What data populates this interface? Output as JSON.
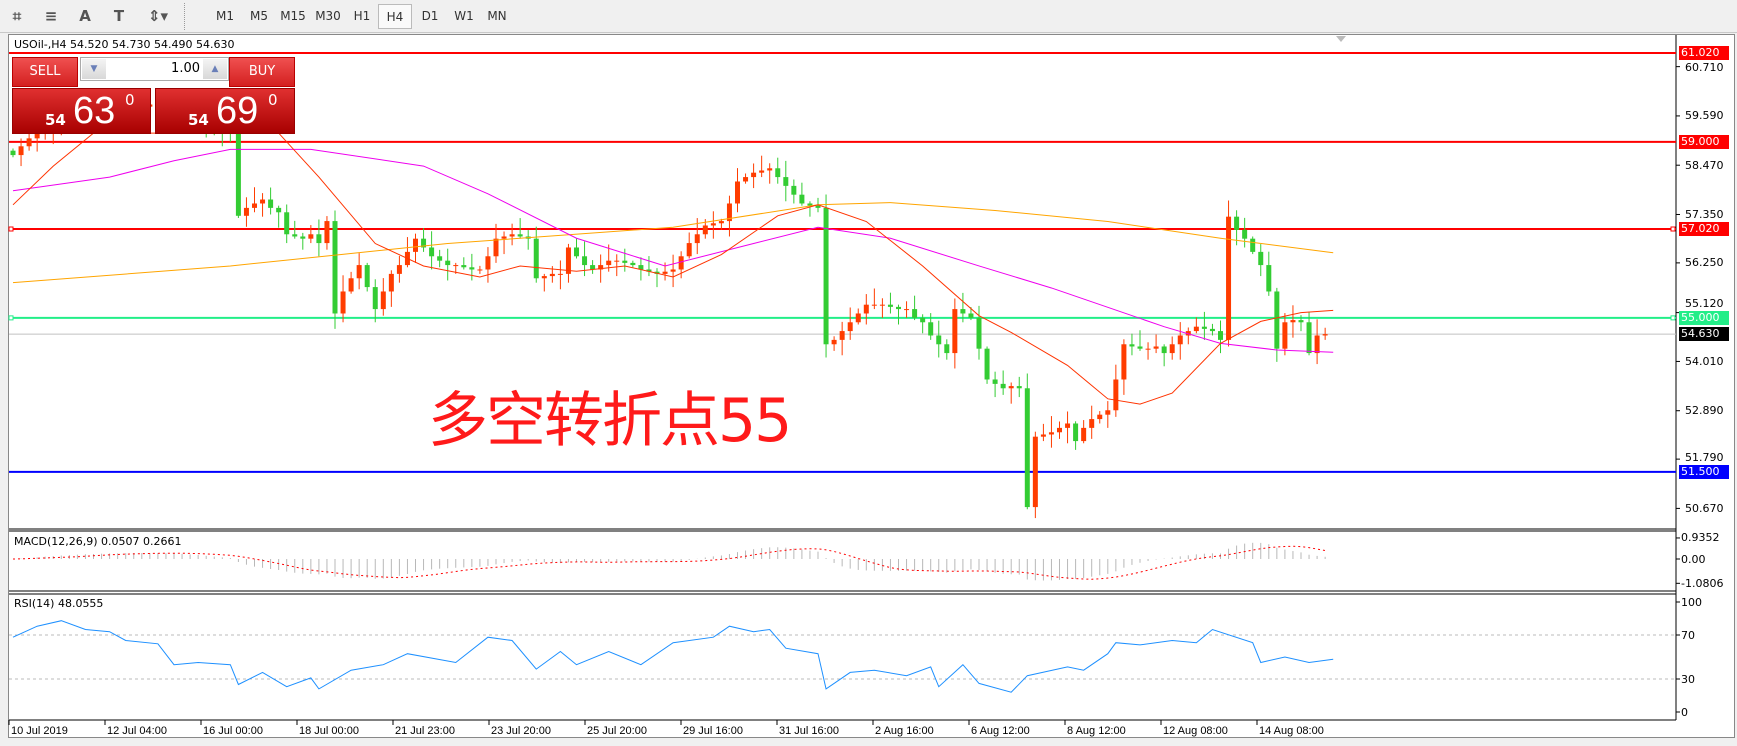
{
  "toolbar": {
    "icons": [
      "chart-grid-icon",
      "horizontal-lines-icon",
      "text-icon",
      "text-label-icon",
      "arrows-icon"
    ],
    "timeframes": [
      "M1",
      "M5",
      "M15",
      "M30",
      "H1",
      "H4",
      "D1",
      "W1",
      "MN"
    ],
    "selected": "H4"
  },
  "chart": {
    "title": "USOil-,H4  54.520 54.730 54.490 54.630"
  },
  "trade": {
    "sell_label": "SELL",
    "buy_label": "BUY",
    "lots": "1.00",
    "sell": {
      "big": "54",
      "main": "63",
      "sup": "0"
    },
    "buy": {
      "big": "54",
      "main": "69",
      "sup": "0"
    }
  },
  "annotation": "多空转折点55",
  "colors": {
    "bull": "#ff3c00",
    "bear": "#33cc33",
    "ma_fast": "#ff3300",
    "ma_mid": "#ee00ee",
    "ma_slow": "#ffa500",
    "rsi": "#1e90ff",
    "macd_signal": "#ff0000",
    "line_red": "#ff0000",
    "line_green": "#22ee88",
    "line_blue": "#0000ff"
  },
  "chart_data": {
    "type": "candlestick",
    "symbol": "USOil-",
    "timeframe": "H4",
    "ylim": [
      50.3,
      61.45
    ],
    "price_ticks": [
      "60.710",
      "59.590",
      "58.470",
      "57.350",
      "56.250",
      "55.120",
      "54.010",
      "52.890",
      "51.790",
      "50.670"
    ],
    "hlines": [
      {
        "price": 61.02,
        "label": "61.020",
        "color": "#ff0000"
      },
      {
        "price": 59.0,
        "label": "59.000",
        "color": "#ff0000"
      },
      {
        "price": 57.02,
        "label": "57.020",
        "color": "#ff0000"
      },
      {
        "price": 55.0,
        "label": "55.000",
        "color": "#22ee88"
      },
      {
        "price": 51.5,
        "label": "51.500",
        "color": "#0000ff"
      }
    ],
    "current_price": {
      "price": 54.63,
      "label": "54.630"
    },
    "date_labels": [
      "10 Jul 2019",
      "12 Jul 04:00",
      "16 Jul 00:00",
      "18 Jul 00:00",
      "21 Jul 23:00",
      "23 Jul 20:00",
      "25 Jul 20:00",
      "29 Jul 16:00",
      "31 Jul 16:00",
      "2 Aug 16:00",
      "6 Aug 12:00",
      "8 Aug 12:00",
      "12 Aug 08:00",
      "14 Aug 08:00"
    ],
    "closes": [
      58.7,
      58.9,
      59.08,
      59.2,
      59.3,
      59.35,
      59.4,
      59.45,
      59.5,
      59.55,
      59.6,
      59.65,
      59.7,
      59.7,
      59.75,
      59.8,
      59.8,
      59.85,
      59.8,
      59.8,
      59.8,
      59.7,
      59.6,
      59.5,
      59.4,
      59.3,
      59.25,
      59.2,
      57.32,
      57.5,
      57.6,
      57.69,
      57.5,
      57.4,
      56.9,
      56.85,
      56.8,
      56.9,
      56.7,
      57.2,
      55.1,
      55.6,
      55.9,
      56.2,
      55.7,
      55.2,
      55.6,
      56.0,
      56.2,
      56.5,
      56.8,
      56.6,
      56.4,
      56.3,
      56.2,
      56.2,
      56.15,
      56.1,
      56.1,
      56.4,
      56.8,
      56.85,
      56.9,
      56.85,
      56.8,
      55.9,
      55.95,
      56.0,
      56.0,
      56.6,
      56.4,
      56.2,
      56.1,
      56.2,
      56.3,
      56.3,
      56.25,
      56.2,
      56.1,
      56.05,
      56.0,
      56.05,
      56.1,
      56.4,
      56.7,
      56.9,
      57.1,
      57.15,
      57.2,
      57.6,
      58.1,
      58.2,
      58.3,
      58.35,
      58.4,
      58.2,
      58.0,
      57.8,
      57.6,
      57.55,
      57.5,
      54.4,
      54.5,
      54.7,
      54.9,
      55.1,
      55.3,
      55.3,
      55.3,
      55.25,
      55.2,
      55.2,
      55.0,
      54.9,
      54.6,
      54.4,
      54.2,
      55.2,
      55.1,
      55.0,
      54.3,
      53.6,
      53.5,
      53.4,
      53.45,
      53.4,
      50.7,
      52.3,
      52.35,
      52.4,
      52.5,
      52.6,
      52.2,
      52.5,
      52.7,
      52.8,
      52.9,
      53.6,
      54.4,
      54.35,
      54.3,
      54.3,
      54.35,
      54.2,
      54.4,
      54.6,
      54.7,
      54.8,
      54.75,
      54.7,
      54.5,
      57.3,
      57.0,
      56.8,
      56.5,
      56.2,
      55.6,
      54.3,
      54.9,
      54.95,
      54.9,
      54.2,
      54.6,
      54.63
    ],
    "ma_slow": [
      [
        0,
        55.8
      ],
      [
        27,
        56.18
      ],
      [
        54,
        56.69
      ],
      [
        82,
        57.06
      ],
      [
        100,
        57.57
      ],
      [
        109,
        57.62
      ],
      [
        122,
        57.44
      ],
      [
        136,
        57.19
      ],
      [
        150,
        56.81
      ],
      [
        164,
        56.48
      ]
    ],
    "ma_mid": [
      [
        0,
        57.89
      ],
      [
        12,
        58.2
      ],
      [
        20,
        58.57
      ],
      [
        27,
        58.83
      ],
      [
        37,
        58.83
      ],
      [
        51,
        58.45
      ],
      [
        59,
        57.82
      ],
      [
        70,
        56.81
      ],
      [
        81,
        56.18
      ],
      [
        92,
        56.69
      ],
      [
        100,
        57.06
      ],
      [
        109,
        56.81
      ],
      [
        120,
        56.18
      ],
      [
        129,
        55.68
      ],
      [
        143,
        54.8
      ],
      [
        150,
        54.42
      ],
      [
        157,
        54.27
      ],
      [
        164,
        54.22
      ]
    ],
    "ma_fast": [
      [
        0,
        57.57
      ],
      [
        5,
        58.45
      ],
      [
        10,
        59.2
      ],
      [
        33,
        59.2
      ],
      [
        38,
        58.2
      ],
      [
        45,
        56.69
      ],
      [
        51,
        56.18
      ],
      [
        58,
        55.93
      ],
      [
        63,
        56.18
      ],
      [
        70,
        56.06
      ],
      [
        76,
        56.18
      ],
      [
        82,
        55.93
      ],
      [
        88,
        56.44
      ],
      [
        95,
        57.32
      ],
      [
        100,
        57.57
      ],
      [
        106,
        57.19
      ],
      [
        113,
        56.18
      ],
      [
        120,
        55.05
      ],
      [
        124,
        54.67
      ],
      [
        131,
        53.92
      ],
      [
        136,
        53.16
      ],
      [
        140,
        53.04
      ],
      [
        144,
        53.29
      ],
      [
        150,
        54.42
      ],
      [
        155,
        54.92
      ],
      [
        160,
        55.12
      ],
      [
        164,
        55.17
      ]
    ],
    "macd": {
      "label": "MACD(12,26,9) 0.0507 0.2661",
      "ticks": [
        "0.9352",
        "0.00",
        "-1.0806"
      ]
    },
    "rsi": {
      "label": "RSI(14) 48.0555",
      "ticks": [
        "100",
        "70",
        "30",
        "0"
      ],
      "levels": [
        70,
        30
      ],
      "values": [
        [
          0,
          68
        ],
        [
          3,
          78
        ],
        [
          6,
          83
        ],
        [
          9,
          75
        ],
        [
          12,
          73
        ],
        [
          14,
          65
        ],
        [
          18,
          62
        ],
        [
          20,
          43
        ],
        [
          23,
          45
        ],
        [
          27,
          43
        ],
        [
          28,
          25
        ],
        [
          31,
          36
        ],
        [
          34,
          23
        ],
        [
          37,
          31
        ],
        [
          38,
          21
        ],
        [
          42,
          38
        ],
        [
          46,
          43
        ],
        [
          49,
          53
        ],
        [
          55,
          45
        ],
        [
          59,
          68
        ],
        [
          62,
          65
        ],
        [
          65,
          39
        ],
        [
          68,
          55
        ],
        [
          70,
          43
        ],
        [
          74,
          55
        ],
        [
          78,
          43
        ],
        [
          82,
          63
        ],
        [
          87,
          68
        ],
        [
          89,
          78
        ],
        [
          92,
          73
        ],
        [
          94,
          75
        ],
        [
          96,
          58
        ],
        [
          100,
          53
        ],
        [
          101,
          21
        ],
        [
          104,
          36
        ],
        [
          107,
          38
        ],
        [
          111,
          33
        ],
        [
          114,
          41
        ],
        [
          115,
          23
        ],
        [
          118,
          43
        ],
        [
          120,
          26
        ],
        [
          124,
          18
        ],
        [
          126,
          33
        ],
        [
          131,
          41
        ],
        [
          133,
          38
        ],
        [
          136,
          53
        ],
        [
          137,
          63
        ],
        [
          140,
          61
        ],
        [
          144,
          65
        ],
        [
          147,
          63
        ],
        [
          149,
          75
        ],
        [
          154,
          63
        ],
        [
          155,
          45
        ],
        [
          158,
          50
        ],
        [
          161,
          45
        ],
        [
          164,
          48
        ]
      ]
    }
  }
}
